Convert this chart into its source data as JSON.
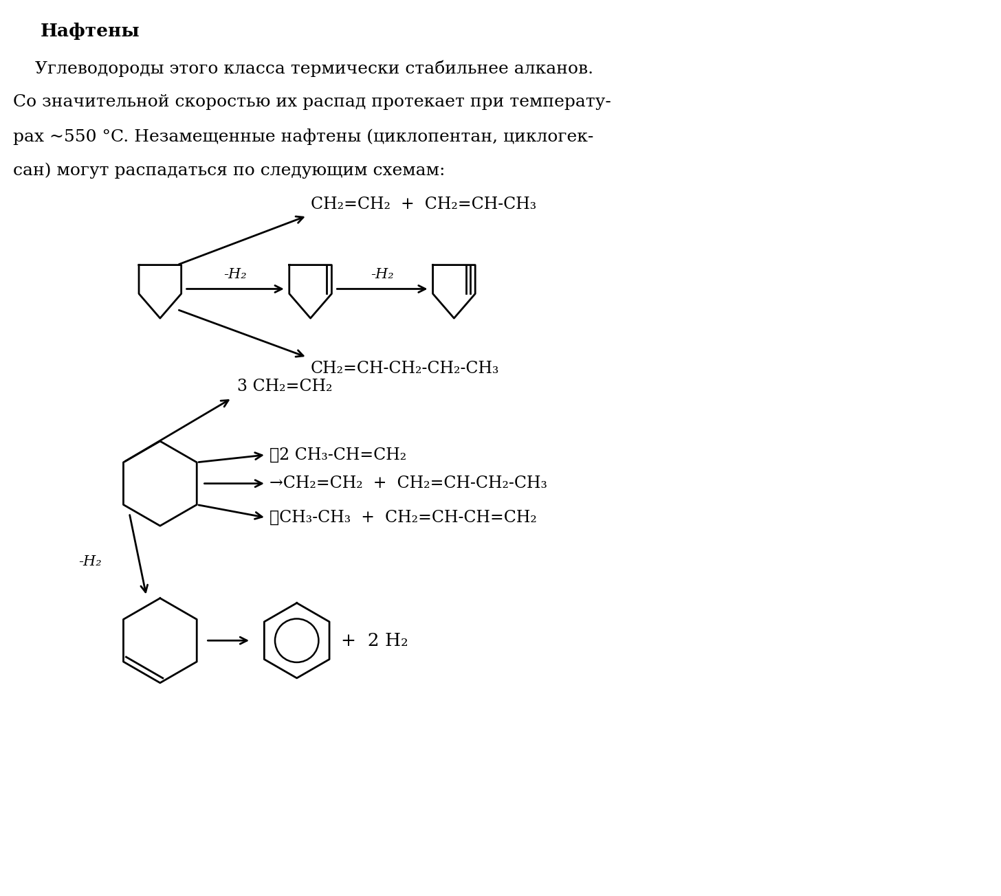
{
  "title": "Нафтены",
  "para_line1": "    Углеводороды этого класса термически стабильнее алканов.",
  "para_line2": "Со значительной скоростью их распад протекает при температу-",
  "para_line3": "рах ~550 °C. Незамещенные нафтены (циклопентан, циклогек-",
  "para_line4": "сан) могут распадаться по следующим схемам:",
  "bg_color": "#ffffff",
  "text_color": "#000000",
  "font_size_title": 19,
  "font_size_body": 18,
  "font_size_chem": 17,
  "font_size_label": 15
}
